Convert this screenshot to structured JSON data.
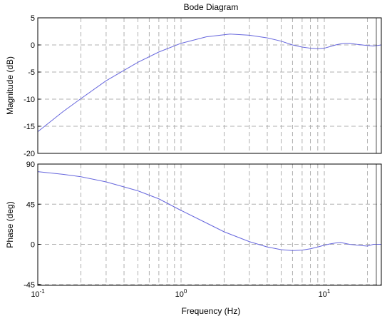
{
  "chart_data": {
    "type": "line",
    "title": "Bode Diagram",
    "xlabel": "Frequency  (Hz)",
    "xscale": "log",
    "xlim": [
      0.1,
      25
    ],
    "xticks": [
      {
        "value": 0.1,
        "base": "10",
        "exp": "-1"
      },
      {
        "value": 1,
        "base": "10",
        "exp": "0"
      },
      {
        "value": 10,
        "base": "10",
        "exp": "1"
      }
    ],
    "grid": true,
    "line_color": "#6666dd",
    "marker_line_x": 25,
    "panels": [
      {
        "name": "magnitude",
        "ylabel": "Magnitude (dB)",
        "ylim": [
          -20,
          5
        ],
        "yticks": [
          "5",
          "0",
          "-5",
          "-10",
          "-15",
          "-20"
        ],
        "ytick_values": [
          5,
          0,
          -5,
          -10,
          -15,
          -20
        ],
        "x": [
          0.1,
          0.15,
          0.2,
          0.3,
          0.5,
          0.7,
          1.0,
          1.5,
          2.2,
          3.0,
          4.0,
          5.0,
          6.0,
          7.0,
          8.0,
          9.0,
          10.0,
          11.0,
          12.0,
          13.0,
          14.0,
          15.0,
          17.0,
          20.0,
          22.0,
          25.0
        ],
        "y": [
          -16.0,
          -12.3,
          -9.9,
          -6.6,
          -3.2,
          -1.3,
          0.3,
          1.5,
          2.0,
          1.8,
          1.3,
          0.7,
          0.0,
          -0.4,
          -0.6,
          -0.7,
          -0.6,
          -0.3,
          0.0,
          0.2,
          0.3,
          0.3,
          0.1,
          -0.1,
          -0.2,
          0.0
        ]
      },
      {
        "name": "phase",
        "ylabel": "Phase (deg)",
        "ylim": [
          -46,
          90
        ],
        "yticks": [
          "90",
          "45",
          "0",
          "-45"
        ],
        "ytick_values": [
          90,
          45,
          0,
          -45
        ],
        "x": [
          0.1,
          0.15,
          0.2,
          0.3,
          0.5,
          0.7,
          1.0,
          1.5,
          2.0,
          3.0,
          4.0,
          5.0,
          6.0,
          7.0,
          8.0,
          9.0,
          10.0,
          11.0,
          12.0,
          13.0,
          14.0,
          15.0,
          17.0,
          20.0,
          22.0,
          25.0
        ],
        "y": [
          81.5,
          78.5,
          75.8,
          70.0,
          60.0,
          51.0,
          38.0,
          24.0,
          14.0,
          3.0,
          -3.0,
          -6.0,
          -7.0,
          -6.5,
          -5.0,
          -3.0,
          -1.0,
          0.5,
          1.5,
          2.0,
          1.0,
          0.0,
          -1.0,
          -2.0,
          0.0,
          0.0
        ]
      }
    ]
  }
}
